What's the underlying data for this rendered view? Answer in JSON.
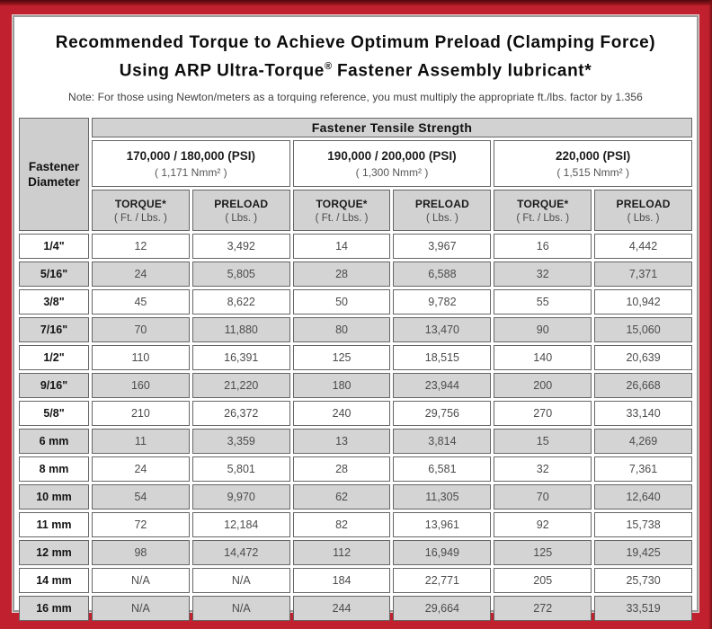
{
  "title": {
    "line1": "Recommended Torque to Achieve Optimum Preload (Clamping Force)",
    "line2_pre": "Using ARP Ultra-Torque",
    "line2_sup": "®",
    "line2_post": " Fastener Assembly lubricant*"
  },
  "note": "Note: For those using Newton/meters as a torquing reference, you must multiply the appropriate ft./lbs. factor by 1.356",
  "table": {
    "corner_line1": "Fastener",
    "corner_line2": "Diameter",
    "tensile_header": "Fastener Tensile Strength",
    "psi_groups": [
      {
        "psi": "170,000 / 180,000 (PSI)",
        "nmm": "( 1,171 Nmm² )"
      },
      {
        "psi": "190,000 / 200,000 (PSI)",
        "nmm": "( 1,300 Nmm² )"
      },
      {
        "psi": "220,000 (PSI)",
        "nmm": "( 1,515 Nmm² )"
      }
    ],
    "col_headers": [
      {
        "main": "TORQUE*",
        "sub": "( Ft. / Lbs. )"
      },
      {
        "main": "PRELOAD",
        "sub": "( Lbs. )"
      },
      {
        "main": "TORQUE*",
        "sub": "( Ft. / Lbs. )"
      },
      {
        "main": "PRELOAD",
        "sub": "( Lbs. )"
      },
      {
        "main": "TORQUE*",
        "sub": "( Ft. / Lbs. )"
      },
      {
        "main": "PRELOAD",
        "sub": "( Lbs. )"
      }
    ],
    "rows": [
      {
        "d": "1/4\"",
        "v": [
          "12",
          "3,492",
          "14",
          "3,967",
          "16",
          "4,442"
        ]
      },
      {
        "d": "5/16\"",
        "v": [
          "24",
          "5,805",
          "28",
          "6,588",
          "32",
          "7,371"
        ]
      },
      {
        "d": "3/8\"",
        "v": [
          "45",
          "8,622",
          "50",
          "9,782",
          "55",
          "10,942"
        ]
      },
      {
        "d": "7/16\"",
        "v": [
          "70",
          "11,880",
          "80",
          "13,470",
          "90",
          "15,060"
        ]
      },
      {
        "d": "1/2\"",
        "v": [
          "110",
          "16,391",
          "125",
          "18,515",
          "140",
          "20,639"
        ]
      },
      {
        "d": "9/16\"",
        "v": [
          "160",
          "21,220",
          "180",
          "23,944",
          "200",
          "26,668"
        ]
      },
      {
        "d": "5/8\"",
        "v": [
          "210",
          "26,372",
          "240",
          "29,756",
          "270",
          "33,140"
        ]
      },
      {
        "d": "6 mm",
        "v": [
          "11",
          "3,359",
          "13",
          "3,814",
          "15",
          "4,269"
        ]
      },
      {
        "d": "8 mm",
        "v": [
          "24",
          "5,801",
          "28",
          "6,581",
          "32",
          "7,361"
        ]
      },
      {
        "d": "10 mm",
        "v": [
          "54",
          "9,970",
          "62",
          "11,305",
          "70",
          "12,640"
        ]
      },
      {
        "d": "11 mm",
        "v": [
          "72",
          "12,184",
          "82",
          "13,961",
          "92",
          "15,738"
        ]
      },
      {
        "d": "12 mm",
        "v": [
          "98",
          "14,472",
          "112",
          "16,949",
          "125",
          "19,425"
        ]
      },
      {
        "d": "14 mm",
        "v": [
          "N/A",
          "N/A",
          "184",
          "22,771",
          "205",
          "25,730"
        ]
      },
      {
        "d": "16 mm",
        "v": [
          "N/A",
          "N/A",
          "244",
          "29,664",
          "272",
          "33,519"
        ]
      }
    ],
    "colors": {
      "frame_red": "#c1212e",
      "frame_top_dark": "#50080d",
      "header_gray": "#d2d2d2",
      "stripe_gray": "#d4d4d4",
      "grid_border": "#666666"
    }
  }
}
